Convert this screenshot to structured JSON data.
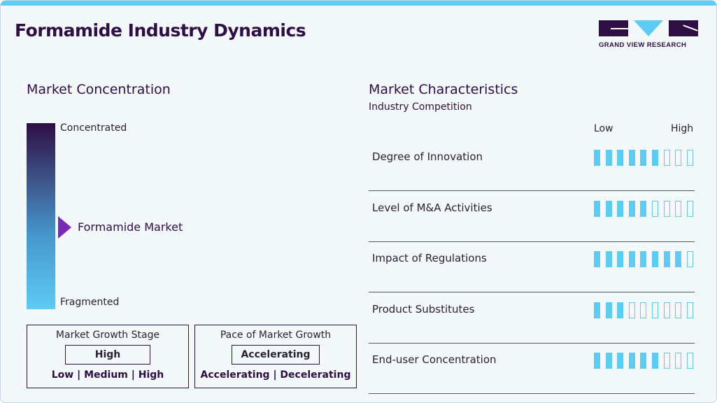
{
  "title": "Formamide Industry Dynamics",
  "logo": {
    "text": "GRAND VIEW RESEARCH",
    "colors": {
      "dark": "#2e0f44",
      "accent": "#5ecbf3"
    }
  },
  "concentration": {
    "heading": "Market Concentration",
    "top": "Concentrated",
    "bottom": "Fragmented",
    "marker": "Formamide Market",
    "marker_level": 0.45
  },
  "growth_stage": {
    "heading": "Market Growth Stage",
    "value": "High",
    "options": "Low | Medium | High"
  },
  "pace": {
    "heading": "Pace of Market Growth",
    "value": "Accelerating",
    "options": "Accelerating | Decelerating"
  },
  "characteristics": {
    "heading": "Market Characteristics",
    "subheading": "Industry Competition",
    "low": "Low",
    "high": "High",
    "max": 9,
    "items": [
      {
        "label": "Degree of Innovation",
        "level": 6
      },
      {
        "label": "Level of M&A Activities",
        "level": 5
      },
      {
        "label": "Impact of Regulations",
        "level": 8
      },
      {
        "label": "Product Substitutes",
        "level": 3
      },
      {
        "label": "End-user Concentration",
        "level": 6
      }
    ]
  }
}
